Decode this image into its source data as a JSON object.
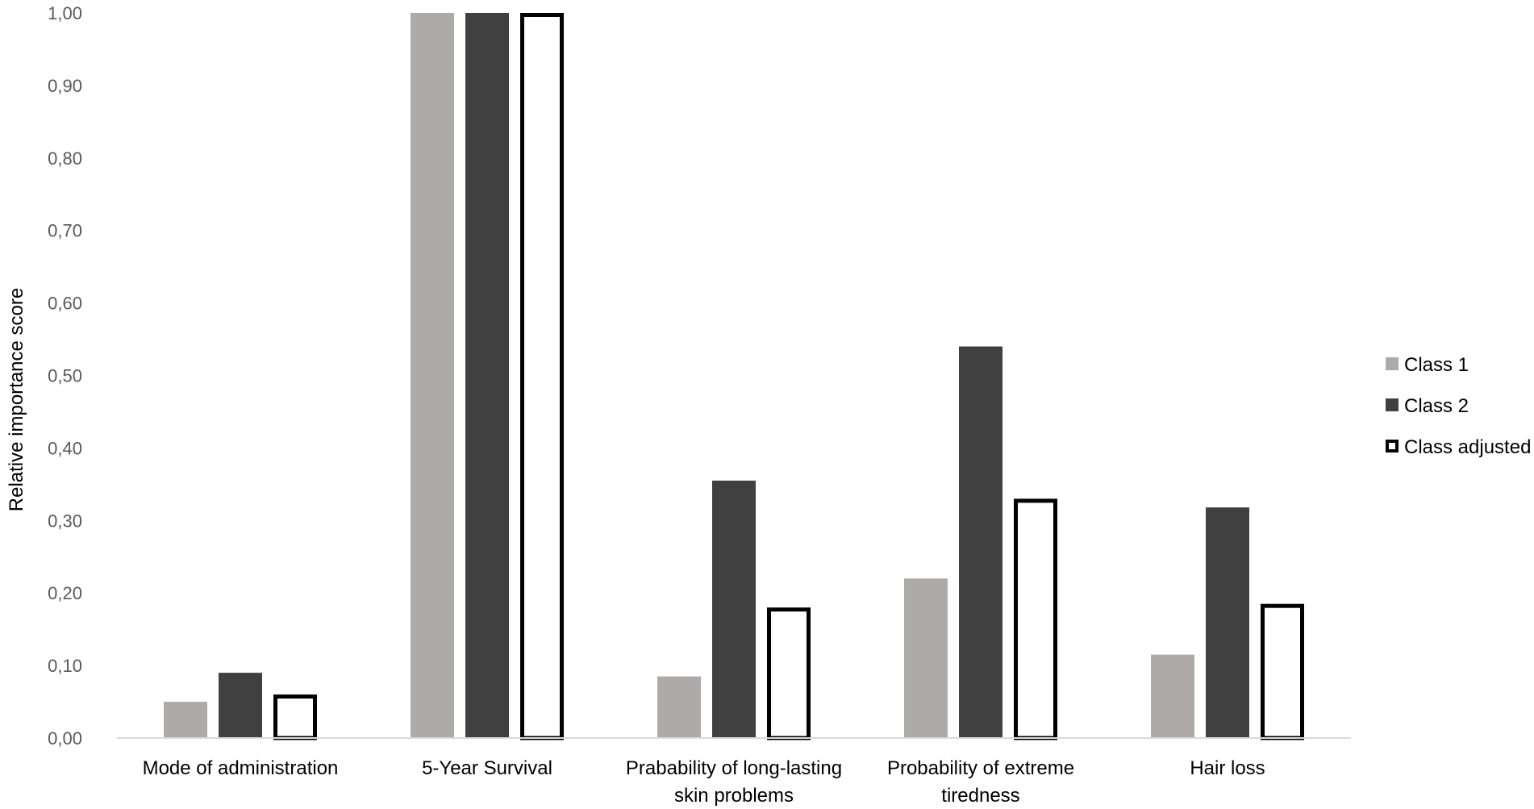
{
  "chart_data": {
    "type": "bar",
    "ylabel": "Relative importance score",
    "xlabel": "",
    "ylim": [
      0,
      1
    ],
    "yticks": [
      "0,00",
      "0,10",
      "0,20",
      "0,30",
      "0,40",
      "0,50",
      "0,60",
      "0,70",
      "0,80",
      "0,90",
      "1,00"
    ],
    "categories": [
      [
        "Mode of administration"
      ],
      [
        "5-Year Survival"
      ],
      [
        "Prabability of long-lasting",
        "skin problems"
      ],
      [
        "Probability of extreme",
        "tiredness"
      ],
      [
        "Hair loss"
      ]
    ],
    "series": [
      {
        "name": "Class 1",
        "values": [
          0.05,
          1.0,
          0.085,
          0.22,
          0.115
        ],
        "fill": "#aeaaaa",
        "stroke": "#aeaaaa"
      },
      {
        "name": "Class 2",
        "values": [
          0.09,
          1.0,
          0.355,
          0.54,
          0.318
        ],
        "fill": "#404040",
        "stroke": "#404040"
      },
      {
        "name": "Class adjusted",
        "values": [
          0.06,
          1.0,
          0.18,
          0.33,
          0.185
        ],
        "fill": "#ffffff",
        "stroke": "#000000"
      }
    ],
    "grid": false,
    "legend": "right"
  }
}
